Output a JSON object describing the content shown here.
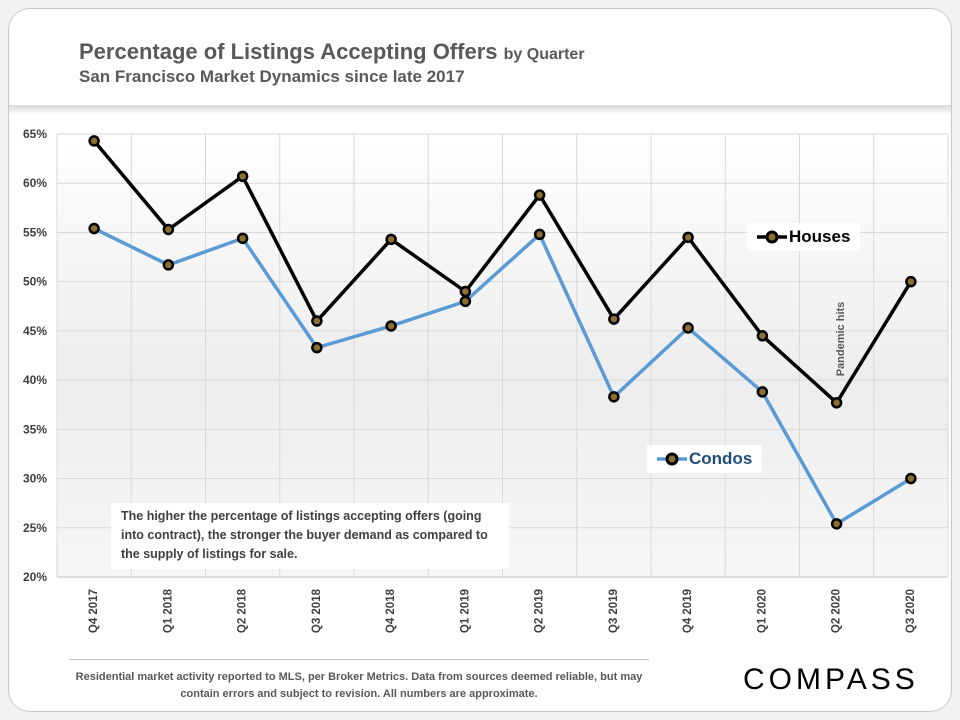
{
  "header": {
    "title_main": "Percentage of Listings Accepting Offers",
    "title_suffix": "by Quarter",
    "subtitle": "San Francisco Market Dynamics since late 2017"
  },
  "note": "The higher the percentage of listings accepting offers (going into contract), the stronger the buyer demand as compared to the supply of listings for sale.",
  "annotation": "Pandemic hits",
  "footer": "Residential market activity reported to MLS, per Broker Metrics. Data from sources deemed reliable, but may contain errors and subject to revision. All numbers are approximate.",
  "brand": "COMPASS",
  "colors": {
    "houses": "#000000",
    "condos": "#5b9bd5",
    "marker_center": "#8b6f2e",
    "grid": "#d9d9d9"
  },
  "chart_data": {
    "type": "line",
    "title": "Percentage of Listings Accepting Offers by Quarter",
    "xlabel": "",
    "ylabel": "",
    "ylim": [
      20,
      65
    ],
    "yticks": [
      "20%",
      "25%",
      "30%",
      "35%",
      "40%",
      "45%",
      "50%",
      "55%",
      "60%",
      "65%"
    ],
    "grid": true,
    "categories": [
      "Q4 2017",
      "Q1 2018",
      "Q2 2018",
      "Q3 2018",
      "Q4 2018",
      "Q1 2019",
      "Q2 2019",
      "Q3 2019",
      "Q4 2019",
      "Q1 2020",
      "Q2 2020",
      "Q3 2020"
    ],
    "series": [
      {
        "name": "Houses",
        "values": [
          64.3,
          55.3,
          60.7,
          46.0,
          54.3,
          49.0,
          58.8,
          46.2,
          54.5,
          44.5,
          37.7,
          50.0
        ]
      },
      {
        "name": "Condos",
        "values": [
          55.4,
          51.7,
          54.4,
          43.3,
          45.5,
          48.0,
          54.8,
          38.3,
          45.3,
          38.8,
          25.4,
          30.0
        ]
      }
    ]
  }
}
